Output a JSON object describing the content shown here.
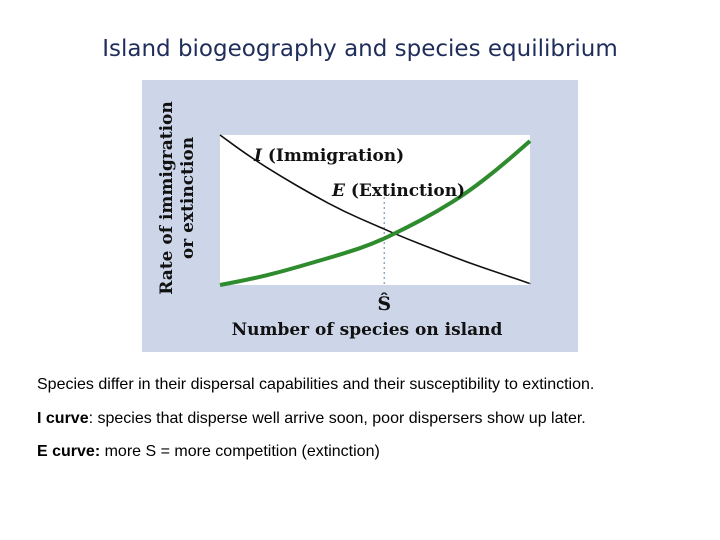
{
  "slide": {
    "title": "Island biogeography and species equilibrium"
  },
  "chart_data": {
    "type": "line",
    "ylabel_line1": "Rate of immigration",
    "ylabel_line2": "or extinction",
    "xlabel": "Number of species on island",
    "equilibrium_label": "Ŝ",
    "series": [
      {
        "name": "I (Immigration)",
        "name_italic_part": "I",
        "name_rest": " (Immigration)",
        "color": "#111111",
        "x": [
          0,
          0.1,
          0.2,
          0.3,
          0.4,
          0.5,
          0.6,
          0.7,
          0.8,
          0.9,
          1.0
        ],
        "y": [
          1.0,
          0.85,
          0.72,
          0.6,
          0.49,
          0.4,
          0.31,
          0.23,
          0.15,
          0.08,
          0.01
        ]
      },
      {
        "name": "E (Extinction)",
        "name_italic_part": "E",
        "name_rest": " (Extinction)",
        "color": "#2e8b2e",
        "x": [
          0,
          0.1,
          0.2,
          0.3,
          0.4,
          0.5,
          0.6,
          0.7,
          0.8,
          0.9,
          1.0
        ],
        "y": [
          0.0,
          0.04,
          0.09,
          0.15,
          0.21,
          0.28,
          0.38,
          0.49,
          0.62,
          0.78,
          0.96
        ]
      }
    ],
    "equilibrium_x": 0.53,
    "xlim": [
      0,
      1
    ],
    "ylim": [
      0,
      1
    ],
    "grid": false,
    "ticks": false
  },
  "captions": {
    "line1": "Species differ in their dispersal capabilities and their susceptibility to  extinction.",
    "line2_bold": "I curve",
    "line2_rest": ": species that disperse well arrive soon, poor dispersers show up later.",
    "line3_bold": "E curve:",
    "line3_rest": " more S = more competition (extinction)"
  }
}
